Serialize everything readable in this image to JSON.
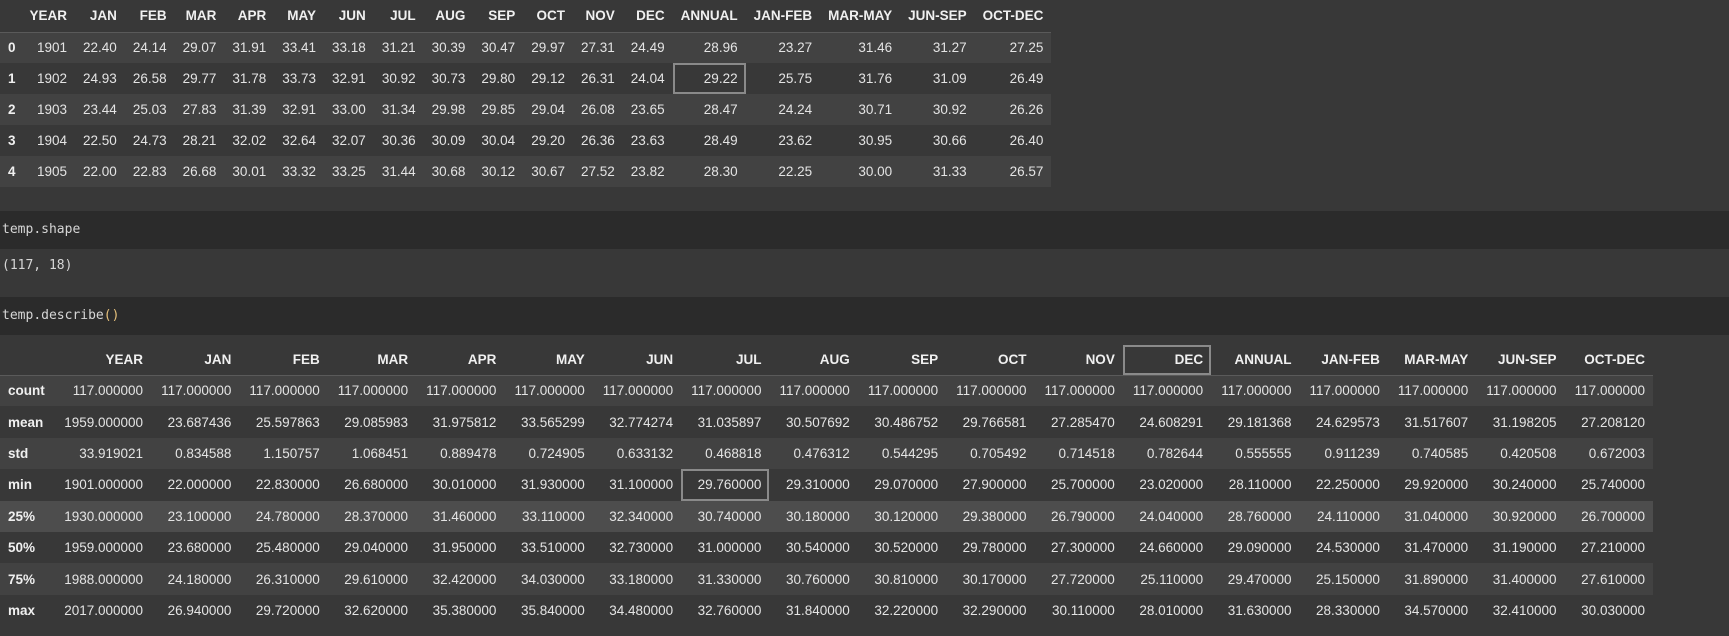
{
  "head_table": {
    "columns": [
      "",
      "YEAR",
      "JAN",
      "FEB",
      "MAR",
      "APR",
      "MAY",
      "JUN",
      "JUL",
      "AUG",
      "SEP",
      "OCT",
      "NOV",
      "DEC",
      "ANNUAL",
      "JAN-FEB",
      "MAR-MAY",
      "JUN-SEP",
      "OCT-DEC"
    ],
    "rows": [
      [
        "0",
        "1901",
        "22.40",
        "24.14",
        "29.07",
        "31.91",
        "33.41",
        "33.18",
        "31.21",
        "30.39",
        "30.47",
        "29.97",
        "27.31",
        "24.49",
        "28.96",
        "23.27",
        "31.46",
        "31.27",
        "27.25"
      ],
      [
        "1",
        "1902",
        "24.93",
        "26.58",
        "29.77",
        "31.78",
        "33.73",
        "32.91",
        "30.92",
        "30.73",
        "29.80",
        "29.12",
        "26.31",
        "24.04",
        "29.22",
        "25.75",
        "31.76",
        "31.09",
        "26.49"
      ],
      [
        "2",
        "1903",
        "23.44",
        "25.03",
        "27.83",
        "31.39",
        "32.91",
        "33.00",
        "31.34",
        "29.98",
        "29.85",
        "29.04",
        "26.08",
        "23.65",
        "28.47",
        "24.24",
        "30.71",
        "30.92",
        "26.26"
      ],
      [
        "3",
        "1904",
        "22.50",
        "24.73",
        "28.21",
        "32.02",
        "32.64",
        "32.07",
        "30.36",
        "30.09",
        "30.04",
        "29.20",
        "26.36",
        "23.63",
        "28.49",
        "23.62",
        "30.95",
        "30.66",
        "26.40"
      ],
      [
        "4",
        "1905",
        "22.00",
        "22.83",
        "26.68",
        "30.01",
        "33.32",
        "33.25",
        "31.44",
        "30.68",
        "30.12",
        "30.67",
        "27.52",
        "23.82",
        "28.30",
        "22.25",
        "30.00",
        "31.33",
        "26.57"
      ]
    ]
  },
  "cell_shape": {
    "code_var": "temp",
    "code_dot": ".",
    "code_attr": "shape",
    "output": "(117, 18)"
  },
  "cell_describe": {
    "code_var": "temp",
    "code_dot": ".",
    "code_method": "describe",
    "code_parens": "()"
  },
  "describe_table": {
    "columns": [
      "",
      "YEAR",
      "JAN",
      "FEB",
      "MAR",
      "APR",
      "MAY",
      "JUN",
      "JUL",
      "AUG",
      "SEP",
      "OCT",
      "NOV",
      "DEC",
      "ANNUAL",
      "JAN-FEB",
      "MAR-MAY",
      "JUN-SEP",
      "OCT-DEC"
    ],
    "rows": [
      [
        "count",
        "117.000000",
        "117.000000",
        "117.000000",
        "117.000000",
        "117.000000",
        "117.000000",
        "117.000000",
        "117.000000",
        "117.000000",
        "117.000000",
        "117.000000",
        "117.000000",
        "117.000000",
        "117.000000",
        "117.000000",
        "117.000000",
        "117.000000",
        "117.000000"
      ],
      [
        "mean",
        "1959.000000",
        "23.687436",
        "25.597863",
        "29.085983",
        "31.975812",
        "33.565299",
        "32.774274",
        "31.035897",
        "30.507692",
        "30.486752",
        "29.766581",
        "27.285470",
        "24.608291",
        "29.181368",
        "24.629573",
        "31.517607",
        "31.198205",
        "27.208120"
      ],
      [
        "std",
        "33.919021",
        "0.834588",
        "1.150757",
        "1.068451",
        "0.889478",
        "0.724905",
        "0.633132",
        "0.468818",
        "0.476312",
        "0.544295",
        "0.705492",
        "0.714518",
        "0.782644",
        "0.555555",
        "0.911239",
        "0.740585",
        "0.420508",
        "0.672003"
      ],
      [
        "min",
        "1901.000000",
        "22.000000",
        "22.830000",
        "26.680000",
        "30.010000",
        "31.930000",
        "31.100000",
        "29.760000",
        "29.310000",
        "29.070000",
        "27.900000",
        "25.700000",
        "23.020000",
        "28.110000",
        "22.250000",
        "29.920000",
        "30.240000",
        "25.740000"
      ],
      [
        "25%",
        "1930.000000",
        "23.100000",
        "24.780000",
        "28.370000",
        "31.460000",
        "33.110000",
        "32.340000",
        "30.740000",
        "30.180000",
        "30.120000",
        "29.380000",
        "26.790000",
        "24.040000",
        "28.760000",
        "24.110000",
        "31.040000",
        "30.920000",
        "26.700000"
      ],
      [
        "50%",
        "1959.000000",
        "23.680000",
        "25.480000",
        "29.040000",
        "31.950000",
        "33.510000",
        "32.730000",
        "31.000000",
        "30.540000",
        "30.520000",
        "29.780000",
        "27.300000",
        "24.660000",
        "29.090000",
        "24.530000",
        "31.470000",
        "31.190000",
        "27.210000"
      ],
      [
        "75%",
        "1988.000000",
        "24.180000",
        "26.310000",
        "29.610000",
        "32.420000",
        "34.030000",
        "33.180000",
        "31.330000",
        "30.760000",
        "30.810000",
        "30.170000",
        "27.720000",
        "25.110000",
        "29.470000",
        "25.150000",
        "31.890000",
        "31.400000",
        "27.610000"
      ],
      [
        "max",
        "2017.000000",
        "26.940000",
        "29.720000",
        "32.620000",
        "35.380000",
        "35.840000",
        "34.480000",
        "32.760000",
        "31.840000",
        "32.220000",
        "32.290000",
        "30.110000",
        "28.010000",
        "31.630000",
        "28.330000",
        "34.570000",
        "32.410000",
        "30.030000"
      ]
    ]
  }
}
